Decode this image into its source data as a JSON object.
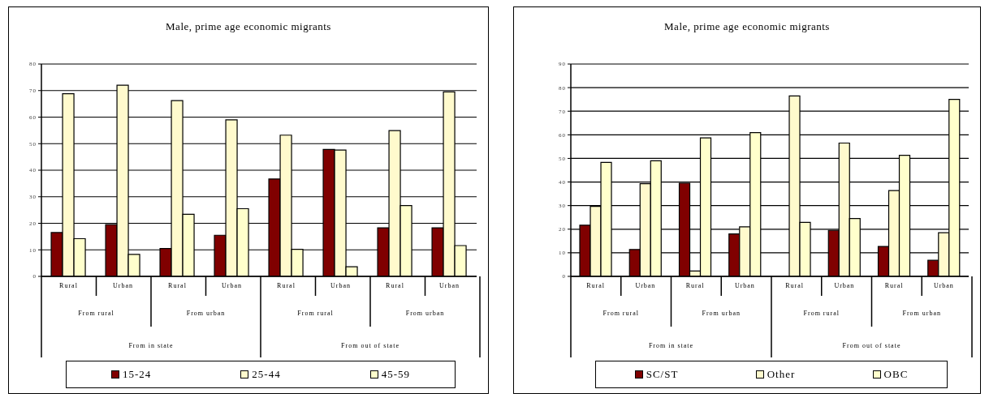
{
  "chart_data": [
    {
      "type": "bar",
      "title": "Male, prime age economic migrants",
      "categories": [
        "Rural",
        "Urban",
        "Rural",
        "Urban",
        "Rural",
        "Urban",
        "Rural",
        "Urban"
      ],
      "annotations": [
        "From rural",
        "From urban",
        "From rural",
        "From urban",
        "From in state",
        "From out of state"
      ],
      "series": [
        {
          "name": "15-24",
          "color": "#800000",
          "values": [
            16.5,
            19.5,
            10.5,
            15.5,
            36.7,
            47.8,
            18.3,
            18.3
          ]
        },
        {
          "name": "25-44",
          "color": "#fffacd",
          "values": [
            68.8,
            72,
            66.2,
            59,
            53.2,
            47.6,
            54.9,
            69.5
          ]
        },
        {
          "name": "45-59",
          "color": "#ffffcc",
          "values": [
            14.2,
            8.3,
            23.4,
            25.5,
            10.2,
            3.6,
            26.7,
            11.6
          ]
        }
      ],
      "ylim": [
        0,
        80
      ],
      "yticks": [
        0,
        10,
        20,
        30,
        40,
        50,
        60,
        70,
        80
      ],
      "grid": "y",
      "legend": "bottom"
    },
    {
      "type": "bar",
      "title": "Male, prime age economic migrants",
      "categories": [
        "Rural",
        "Urban",
        "Rural",
        "Urban",
        "Rural",
        "Urban",
        "Rural",
        "Urban"
      ],
      "annotations": [
        "From rural",
        "From urban",
        "From rural",
        "From urban",
        "From in state",
        "From out of state"
      ],
      "series": [
        {
          "name": "SC/ST",
          "color": "#800000",
          "values": [
            21.7,
            11.4,
            39.5,
            18,
            null,
            19.5,
            12.7,
            6.8
          ]
        },
        {
          "name": "Other",
          "color": "#fffacd",
          "values": [
            29.7,
            39.3,
            2.3,
            21,
            76.5,
            56.5,
            36.4,
            18.5
          ]
        },
        {
          "name": "OBC",
          "color": "#ffffcc",
          "values": [
            48.3,
            49,
            58.7,
            60.9,
            22.9,
            24.5,
            51.3,
            75
          ]
        }
      ],
      "ylim": [
        0,
        90
      ],
      "yticks": [
        0,
        10,
        20,
        30,
        40,
        50,
        60,
        70,
        80,
        90
      ],
      "grid": "y",
      "legend": "bottom"
    }
  ]
}
